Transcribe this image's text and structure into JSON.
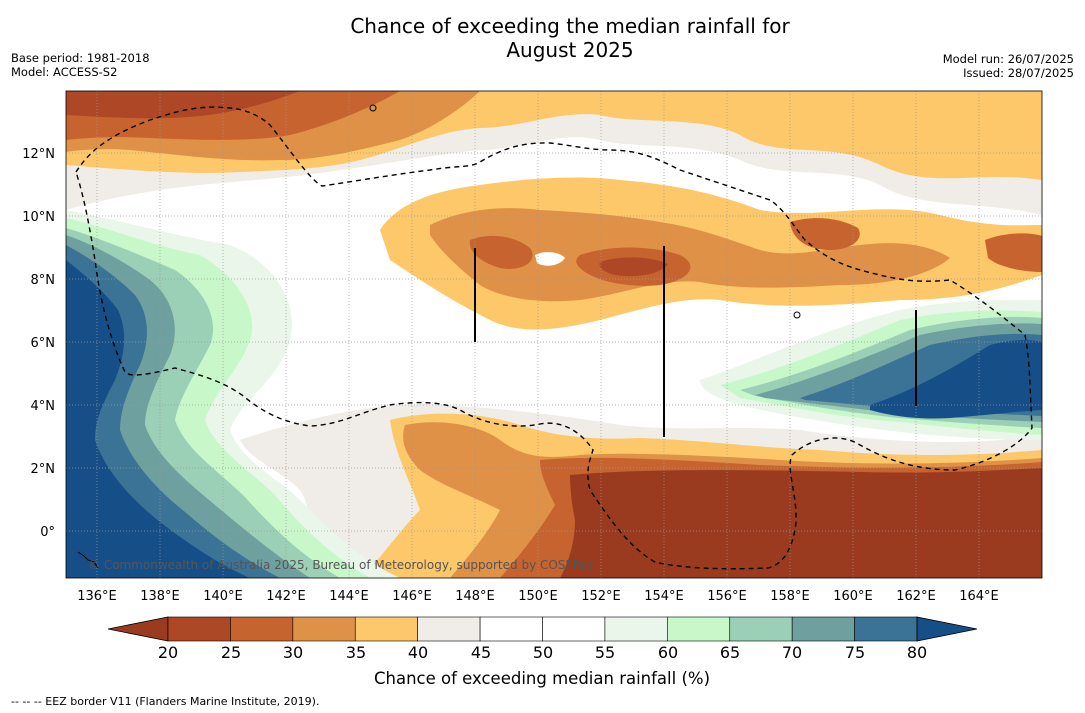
{
  "title": {
    "line1": "Chance of exceeding the median rainfall for",
    "line2": "August 2025"
  },
  "meta_left": {
    "base_period": "Base period: 1981-2018",
    "model": "Model: ACCESS-S2"
  },
  "meta_right": {
    "model_run": "Model run: 26/07/2025",
    "issued": "Issued: 28/07/2025"
  },
  "map": {
    "lon_labels": [
      "136°E",
      "138°E",
      "140°E",
      "142°E",
      "144°E",
      "146°E",
      "148°E",
      "150°E",
      "152°E",
      "154°E",
      "156°E",
      "158°E",
      "160°E",
      "162°E",
      "164°E"
    ],
    "lat_labels": [
      "12°N",
      "10°N",
      "8°N",
      "6°N",
      "4°N",
      "2°N",
      "0°"
    ],
    "lon_range": [
      135.0,
      166.0
    ],
    "lat_range": [
      -1.5,
      14.0
    ],
    "copyright": "© Commonwealth of Australia 2025, Bureau of Meteorology, supported by COSPPac"
  },
  "colorbar": {
    "ticks": [
      "20",
      "25",
      "30",
      "35",
      "40",
      "45",
      "50",
      "55",
      "60",
      "65",
      "70",
      "75",
      "80"
    ],
    "bin_colors": [
      "#9a3a1f",
      "#ad4726",
      "#c7632f",
      "#de9147",
      "#fcc86a",
      "#f0ece7",
      "#ffffff",
      "#ffffff",
      "#eaf6ea",
      "#c8f8c9",
      "#9bd0b6",
      "#6ea0a0",
      "#3b7396",
      "#164f87"
    ],
    "title": "Chance of exceeding median rainfall (%)"
  },
  "footnote": "--  --  -- EEZ border V11 (Flanders Marine Institute, 2019)."
}
